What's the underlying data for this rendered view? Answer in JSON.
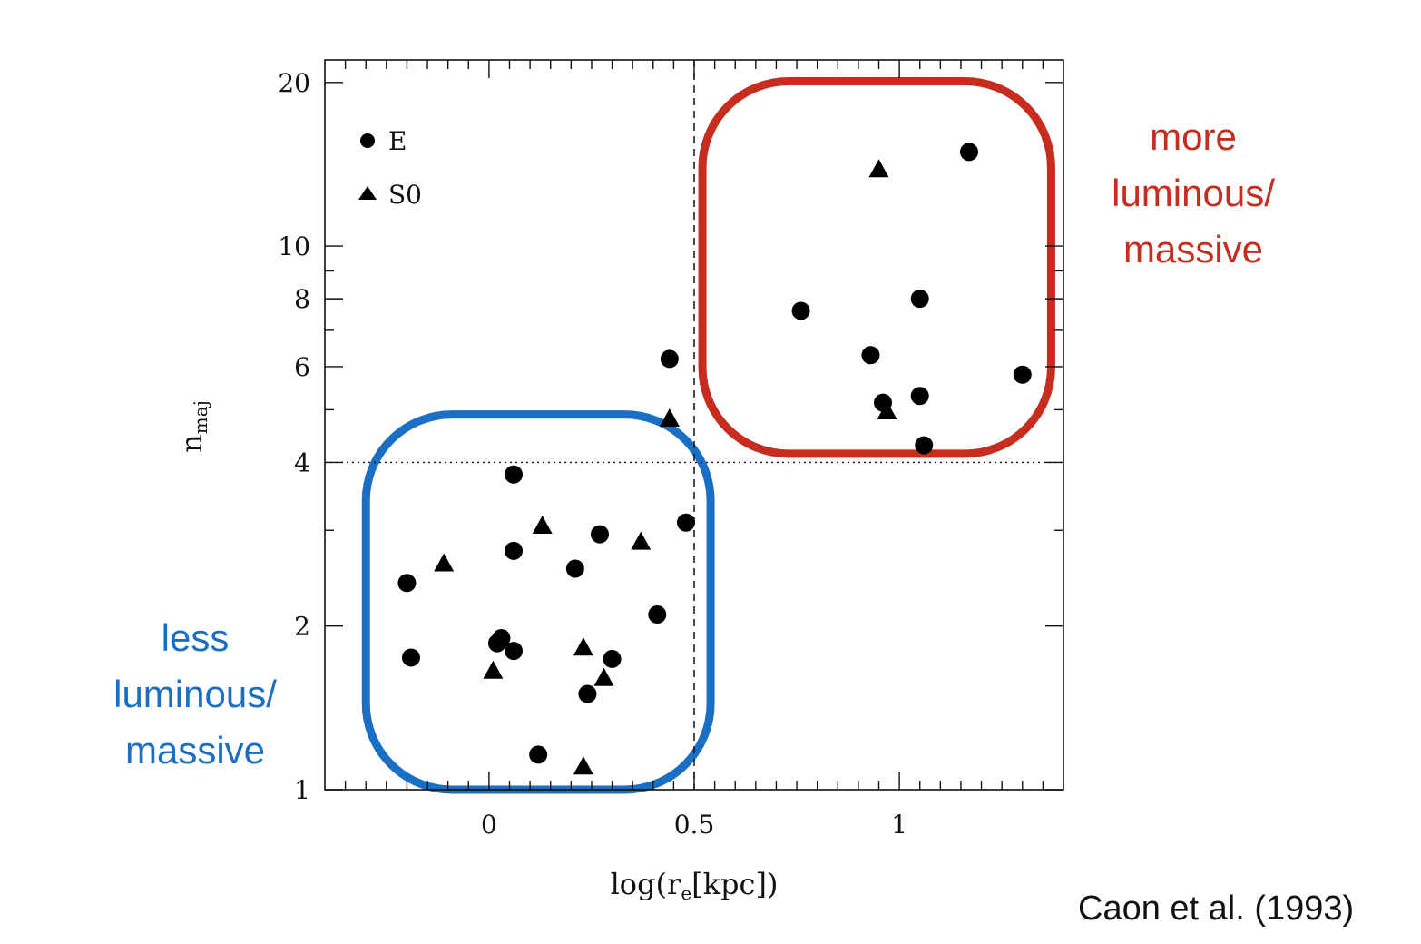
{
  "chart_data": {
    "type": "scatter",
    "xlabel_main": "log(r",
    "xlabel_sub": "e",
    "xlabel_tail": "[kpc])",
    "ylabel_main": "n",
    "ylabel_sub": "maj",
    "x_scale": "linear",
    "y_scale": "log",
    "xlim": [
      -0.4,
      1.4
    ],
    "ylim": [
      1,
      22
    ],
    "x_ticks": [
      {
        "value": 0,
        "label": "0"
      },
      {
        "value": 0.5,
        "label": "0.5"
      },
      {
        "value": 1,
        "label": "1"
      }
    ],
    "y_ticks": [
      {
        "value": 1,
        "label": "1"
      },
      {
        "value": 2,
        "label": "2"
      },
      {
        "value": 4,
        "label": "4"
      },
      {
        "value": 6,
        "label": "6"
      },
      {
        "value": 8,
        "label": "8"
      },
      {
        "value": 10,
        "label": "10"
      },
      {
        "value": 20,
        "label": "20"
      }
    ],
    "reference_lines": [
      {
        "orientation": "vertical",
        "value": 0.5,
        "style": "dashed"
      },
      {
        "orientation": "horizontal",
        "value": 4,
        "style": "dotted"
      }
    ],
    "legend": {
      "placement": "top-left"
    },
    "series": [
      {
        "name": "E",
        "marker": "circle",
        "color": "#000000",
        "points": [
          [
            -0.2,
            2.4
          ],
          [
            -0.19,
            1.75
          ],
          [
            0.02,
            1.86
          ],
          [
            0.03,
            1.9
          ],
          [
            0.06,
            1.8
          ],
          [
            0.06,
            3.8
          ],
          [
            0.06,
            2.75
          ],
          [
            0.12,
            1.16
          ],
          [
            0.21,
            2.55
          ],
          [
            0.24,
            1.5
          ],
          [
            0.27,
            2.95
          ],
          [
            0.3,
            1.74
          ],
          [
            0.41,
            2.1
          ],
          [
            0.44,
            6.2
          ],
          [
            0.48,
            3.1
          ],
          [
            0.76,
            7.6
          ],
          [
            0.93,
            6.3
          ],
          [
            0.96,
            5.15
          ],
          [
            1.05,
            8.0
          ],
          [
            1.05,
            5.3
          ],
          [
            1.06,
            4.3
          ],
          [
            1.17,
            14.9
          ],
          [
            1.3,
            5.8
          ]
        ]
      },
      {
        "name": "S0",
        "marker": "triangle",
        "color": "#000000",
        "points": [
          [
            -0.11,
            2.6
          ],
          [
            0.01,
            1.65
          ],
          [
            0.13,
            3.05
          ],
          [
            0.23,
            1.1
          ],
          [
            0.23,
            1.82
          ],
          [
            0.28,
            1.6
          ],
          [
            0.37,
            2.85
          ],
          [
            0.44,
            4.8
          ],
          [
            0.95,
            13.8
          ],
          [
            0.97,
            4.95
          ]
        ]
      }
    ],
    "highlights": [
      {
        "color": "#1a6fc4",
        "x_range": [
          -0.3,
          0.54
        ],
        "y_range": [
          1.0,
          4.9
        ]
      },
      {
        "color": "#c62d1f",
        "x_range": [
          0.52,
          1.37
        ],
        "y_range": [
          4.15,
          20.1
        ]
      }
    ]
  },
  "annotations": {
    "low_group": [
      "less",
      "luminous/",
      "massive"
    ],
    "high_group": [
      "more",
      "luminous/",
      "massive"
    ],
    "low_color": "#1a6fc4",
    "high_color": "#c62d1f"
  },
  "credit": "Caon et al. (1993)"
}
